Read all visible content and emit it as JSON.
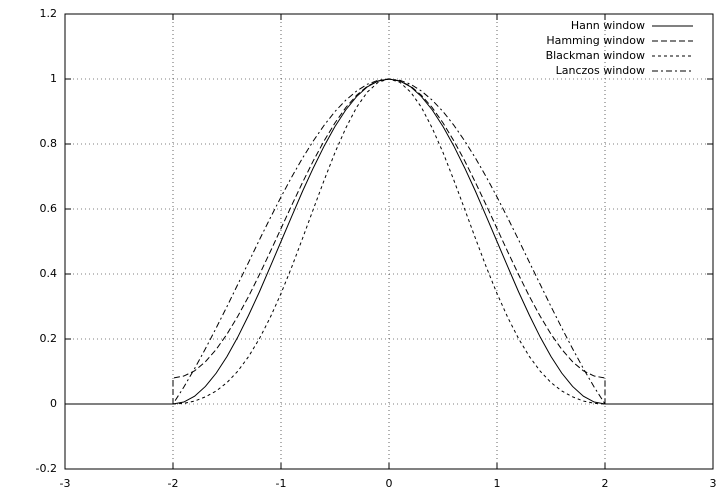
{
  "chart_data": {
    "type": "line",
    "x": [
      -3,
      -2,
      -2,
      -1.9,
      -1.8,
      -1.7,
      -1.6,
      -1.5,
      -1.4,
      -1.3,
      -1.2,
      -1.1,
      -1,
      -0.9,
      -0.8,
      -0.7,
      -0.6,
      -0.5,
      -0.4,
      -0.3,
      -0.2,
      -0.1,
      0,
      0.1,
      0.2,
      0.3,
      0.4,
      0.5,
      0.6,
      0.7,
      0.8,
      0.9,
      1,
      1.1,
      1.2,
      1.3,
      1.4,
      1.5,
      1.6,
      1.7,
      1.8,
      1.9,
      2,
      2,
      3
    ],
    "series": [
      {
        "name": "Hann window",
        "color": "#000000",
        "dash": "none",
        "values": [
          0,
          0,
          0,
          0.006,
          0.024,
          0.054,
          0.095,
          0.146,
          0.206,
          0.273,
          0.345,
          0.422,
          0.5,
          0.578,
          0.655,
          0.727,
          0.794,
          0.854,
          0.905,
          0.946,
          0.976,
          0.994,
          1,
          0.994,
          0.976,
          0.946,
          0.905,
          0.854,
          0.794,
          0.727,
          0.655,
          0.578,
          0.5,
          0.422,
          0.345,
          0.273,
          0.206,
          0.146,
          0.095,
          0.054,
          0.024,
          0.006,
          0,
          0,
          0
        ]
      },
      {
        "name": "Hamming window",
        "color": "#000000",
        "dash": "6,3",
        "values": [
          0,
          0,
          0.08,
          0.086,
          0.102,
          0.13,
          0.168,
          0.215,
          0.27,
          0.331,
          0.398,
          0.468,
          0.54,
          0.612,
          0.682,
          0.749,
          0.81,
          0.865,
          0.912,
          0.95,
          0.978,
          0.994,
          1,
          0.994,
          0.978,
          0.95,
          0.912,
          0.865,
          0.81,
          0.749,
          0.682,
          0.612,
          0.54,
          0.468,
          0.398,
          0.331,
          0.27,
          0.215,
          0.168,
          0.13,
          0.102,
          0.086,
          0.08,
          0,
          0
        ]
      },
      {
        "name": "Blackman window",
        "color": "#000000",
        "dash": "3,3",
        "values": [
          0,
          0,
          0,
          0.002,
          0.009,
          0.022,
          0.04,
          0.066,
          0.101,
          0.146,
          0.201,
          0.266,
          0.34,
          0.422,
          0.51,
          0.6,
          0.689,
          0.774,
          0.849,
          0.913,
          0.96,
          0.99,
          1,
          0.99,
          0.96,
          0.913,
          0.849,
          0.774,
          0.689,
          0.6,
          0.51,
          0.422,
          0.34,
          0.266,
          0.201,
          0.146,
          0.101,
          0.066,
          0.04,
          0.022,
          0.009,
          0.002,
          0,
          0,
          0
        ]
      },
      {
        "name": "Lanczos window",
        "color": "#000000",
        "dash": "6,3,2,3",
        "values": [
          0,
          0,
          0,
          0.052,
          0.109,
          0.17,
          0.234,
          0.3,
          0.368,
          0.436,
          0.505,
          0.572,
          0.637,
          0.699,
          0.757,
          0.81,
          0.858,
          0.9,
          0.935,
          0.963,
          0.984,
          0.996,
          1,
          0.996,
          0.984,
          0.963,
          0.935,
          0.9,
          0.858,
          0.81,
          0.757,
          0.699,
          0.637,
          0.572,
          0.505,
          0.436,
          0.368,
          0.3,
          0.234,
          0.17,
          0.109,
          0.052,
          0,
          0,
          0
        ]
      }
    ],
    "xlim": [
      -3,
      3
    ],
    "ylim": [
      -0.2,
      1.2
    ],
    "xticks": [
      -3,
      -2,
      -1,
      0,
      1,
      2,
      3
    ],
    "yticks": [
      -0.2,
      0,
      0.2,
      0.4,
      0.6,
      0.8,
      1,
      1.2
    ],
    "grid": true,
    "legend": "top-right"
  }
}
